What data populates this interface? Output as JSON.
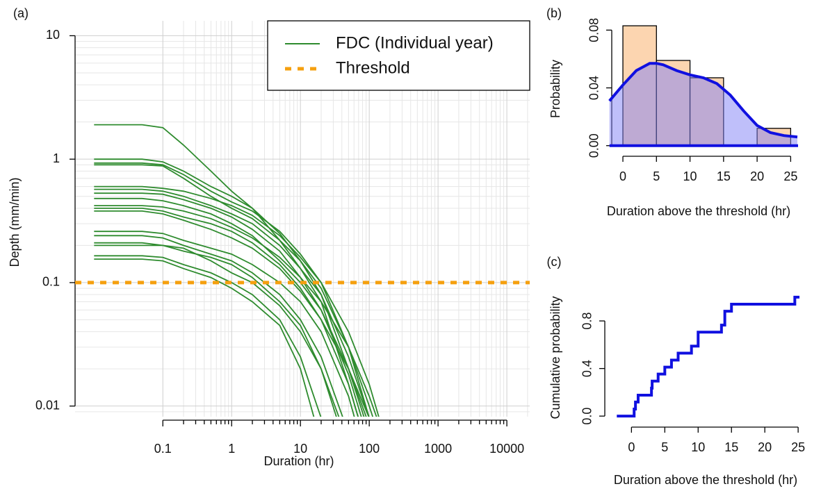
{
  "chart_data": [
    {
      "type": "line",
      "panel_label": "(a)",
      "xlabel": "Duration (hr)",
      "ylabel": "Depth (mm/min)",
      "log_x": true,
      "log_y": true,
      "grid": true,
      "legend": "top-right",
      "xlim": [
        0.0053,
        21500
      ],
      "ylim": [
        0.0082,
        13.2
      ],
      "xticks": [
        0.1,
        1,
        10,
        100,
        1000,
        10000
      ],
      "yticks": [
        0.01,
        0.1,
        1,
        10
      ],
      "x": [
        0.01,
        0.05,
        0.1,
        0.2,
        0.5,
        1,
        2,
        5,
        10,
        20,
        50,
        100,
        200
      ],
      "series": [
        {
          "name": "FDC (Individual year)",
          "color": "#2e8b2e",
          "values": [
            [
              1.9,
              1.9,
              1.8,
              1.3,
              0.8,
              0.55,
              0.4,
              0.22,
              0.13,
              0.07,
              0.015,
              0.004,
              null
            ],
            [
              1.0,
              1.0,
              0.95,
              0.8,
              0.6,
              0.5,
              0.4,
              0.25,
              0.15,
              0.08,
              0.02,
              0.006,
              null
            ],
            [
              0.93,
              0.93,
              0.9,
              0.75,
              0.55,
              0.45,
              0.38,
              0.26,
              0.17,
              0.1,
              0.03,
              0.008,
              null
            ],
            [
              0.9,
              0.9,
              0.88,
              0.7,
              0.5,
              0.4,
              0.33,
              0.22,
              0.15,
              0.09,
              0.03,
              0.01,
              0.003
            ],
            [
              0.6,
              0.6,
              0.58,
              0.55,
              0.48,
              0.42,
              0.35,
              0.24,
              0.16,
              0.1,
              0.04,
              0.015,
              0.004
            ],
            [
              0.57,
              0.57,
              0.55,
              0.5,
              0.42,
              0.36,
              0.3,
              0.2,
              0.13,
              0.08,
              0.025,
              0.008,
              null
            ],
            [
              0.53,
              0.53,
              0.52,
              0.47,
              0.4,
              0.34,
              0.27,
              0.18,
              0.11,
              0.06,
              0.018,
              0.005,
              null
            ],
            [
              0.48,
              0.48,
              0.46,
              0.42,
              0.36,
              0.3,
              0.24,
              0.15,
              0.1,
              0.06,
              0.02,
              0.007,
              null
            ],
            [
              0.42,
              0.42,
              0.41,
              0.38,
              0.33,
              0.28,
              0.23,
              0.16,
              0.11,
              0.07,
              0.03,
              0.012,
              0.004
            ],
            [
              0.4,
              0.4,
              0.38,
              0.34,
              0.3,
              0.26,
              0.21,
              0.14,
              0.09,
              0.05,
              0.015,
              0.004,
              null
            ],
            [
              0.38,
              0.38,
              0.36,
              0.32,
              0.27,
              0.23,
              0.19,
              0.13,
              0.085,
              0.05,
              0.02,
              0.008,
              null
            ],
            [
              0.26,
              0.26,
              0.25,
              0.22,
              0.19,
              0.17,
              0.14,
              0.1,
              0.07,
              0.04,
              0.012,
              0.003,
              null
            ],
            [
              0.24,
              0.24,
              0.23,
              0.2,
              0.17,
              0.15,
              0.12,
              0.08,
              0.05,
              0.025,
              0.006,
              null,
              null
            ],
            [
              0.21,
              0.21,
              0.2,
              0.18,
              0.16,
              0.14,
              0.11,
              0.07,
              0.045,
              0.02,
              0.004,
              null,
              null
            ],
            [
              0.2,
              0.2,
              0.2,
              0.19,
              0.15,
              0.12,
              0.1,
              0.065,
              0.04,
              0.02,
              0.005,
              null,
              null
            ],
            [
              0.165,
              0.165,
              0.16,
              0.14,
              0.12,
              0.1,
              0.08,
              0.05,
              0.025,
              0.008,
              null,
              null,
              null
            ],
            [
              0.155,
              0.155,
              0.15,
              0.13,
              0.11,
              0.09,
              0.07,
              0.045,
              0.02,
              0.005,
              null,
              null,
              null
            ]
          ]
        }
      ],
      "threshold": {
        "name": "Threshold",
        "value": 0.1,
        "color": "#f5a00f"
      }
    },
    {
      "type": "histogram",
      "panel_label": "(b)",
      "xlabel": "Duration above the threshold (hr)",
      "ylabel": "Probability",
      "bins": [
        0,
        5,
        10,
        15,
        20,
        25
      ],
      "values": [
        0.083,
        0.059,
        0.047,
        0,
        0.012
      ],
      "color": "#fcd5b0",
      "density": {
        "x": [
          -2,
          0,
          2,
          4,
          5,
          6,
          8,
          10,
          12,
          14,
          16,
          18,
          20,
          22,
          24,
          26
        ],
        "values": [
          0.031,
          0.042,
          0.052,
          0.057,
          0.057,
          0.056,
          0.052,
          0.049,
          0.047,
          0.043,
          0.035,
          0.024,
          0.014,
          0.009,
          0.007,
          0.006
        ],
        "color": "#1010e0",
        "fill_color": "#7f7ff5"
      },
      "xlim": [
        -1.66,
        26.1
      ],
      "ylim": [
        -0.0035,
        0.0845
      ],
      "xticks": [
        0,
        5,
        10,
        15,
        20,
        25
      ],
      "yticks": [
        {
          "value": 0,
          "label": "0.00"
        },
        0.04,
        0.08
      ]
    },
    {
      "type": "step",
      "panel_label": "(c)",
      "xlabel": "Duration above the threshold (hr)",
      "ylabel": "Cumulative probability",
      "x": [
        -2.2,
        0.4,
        0.6,
        1.0,
        3.0,
        3.1,
        4.0,
        5.0,
        6.0,
        7.0,
        9.0,
        10.0,
        13.5,
        14.0,
        15.0,
        24.5,
        25.2
      ],
      "values": [
        0,
        0.059,
        0.118,
        0.176,
        0.235,
        0.294,
        0.353,
        0.412,
        0.471,
        0.529,
        0.588,
        0.706,
        0.765,
        0.882,
        0.941,
        1.0,
        1.0
      ],
      "color": "#1010e0",
      "xlim": [
        -4,
        25.3
      ],
      "ylim": [
        -0.04,
        1.04
      ],
      "xticks": [
        0,
        5,
        10,
        15,
        20,
        25
      ],
      "yticks": [
        {
          "value": 0,
          "label": "0.0"
        },
        0.4,
        0.8
      ]
    }
  ]
}
